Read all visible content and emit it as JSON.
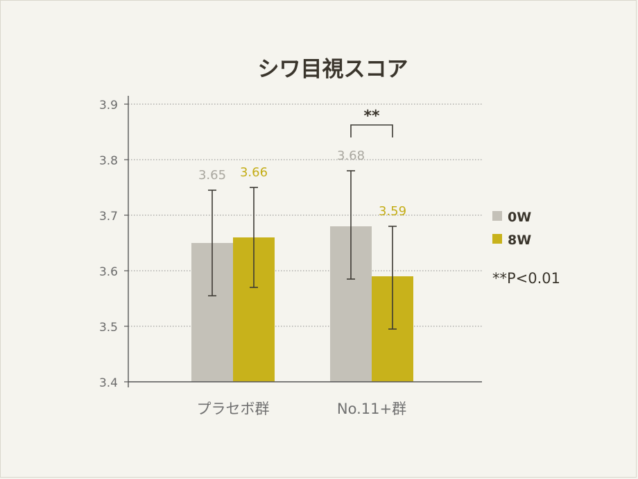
{
  "chart_data": {
    "type": "bar",
    "title": "シワ目視スコア",
    "categories": [
      "プラセボ群",
      "No.11+群"
    ],
    "series": [
      {
        "name": "0W",
        "color": "#c4c1b8",
        "label_color": "#a9a79f",
        "values": [
          3.65,
          3.68
        ],
        "err_low": [
          3.555,
          3.585
        ],
        "err_high": [
          3.745,
          3.78
        ]
      },
      {
        "name": "8W",
        "color": "#c8b21b",
        "label_color": "#c4ad17",
        "values": [
          3.66,
          3.59
        ],
        "err_low": [
          3.57,
          3.495
        ],
        "err_high": [
          3.75,
          3.68
        ]
      }
    ],
    "data_labels": [
      [
        "3.65",
        "3.68"
      ],
      [
        "3.66",
        "3.59"
      ]
    ],
    "ylim": [
      3.4,
      3.9
    ],
    "yticks": [
      "3.4",
      "3.5",
      "3.6",
      "3.7",
      "3.8",
      "3.9"
    ],
    "grid": true,
    "legend_position": "right",
    "significance": {
      "text": "**",
      "category": "No.11+群"
    },
    "note": "**P<0.01"
  }
}
